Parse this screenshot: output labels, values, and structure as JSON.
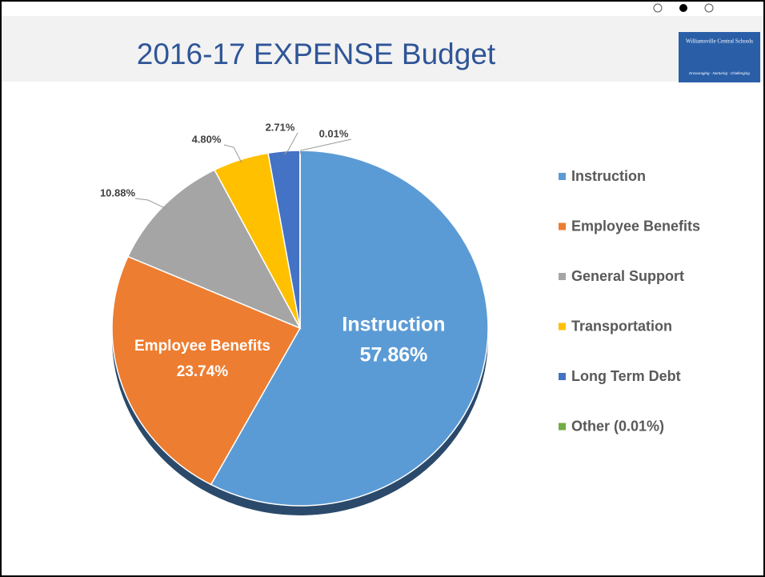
{
  "chart_data": {
    "type": "pie",
    "title": "2016-17 EXPENSE Budget",
    "logo_text": "Williamsville Central Schools",
    "logo_tagline": "Encouraging · Nurturing · Challenging",
    "categories": [
      "Instruction",
      "Employee Benefits",
      "General Support",
      "Transportation",
      "Long Term Debt",
      "Other (0.01%)"
    ],
    "values": [
      57.86,
      23.74,
      10.88,
      4.8,
      2.71,
      0.01
    ],
    "value_labels": [
      "57.86%",
      "23.74%",
      "10.88%",
      "4.80%",
      "2.71%",
      "0.01%"
    ],
    "colors": [
      "#5b9bd5",
      "#ed7d31",
      "#a5a5a5",
      "#ffc000",
      "#4472c4",
      "#70ad47"
    ],
    "legend": "right"
  }
}
